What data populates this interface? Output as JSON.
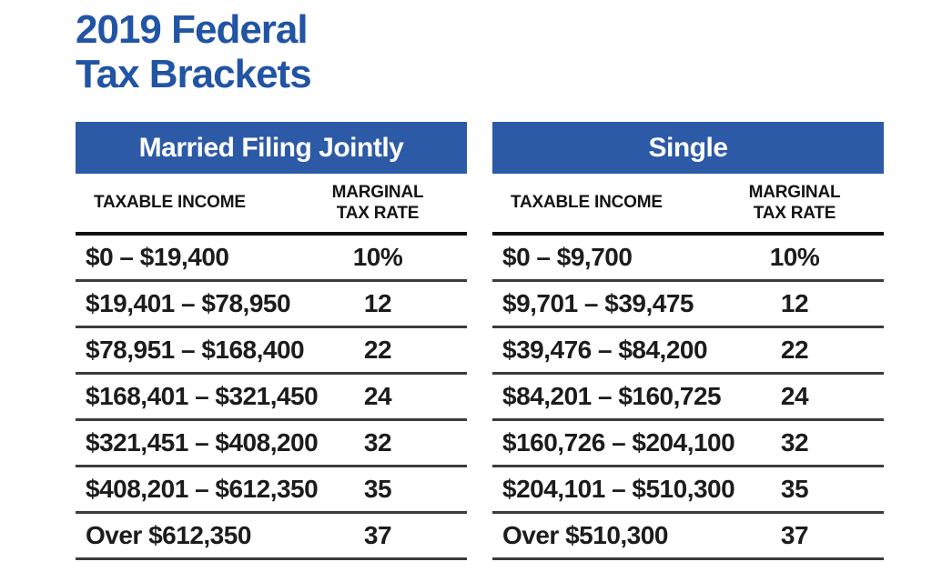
{
  "page_title": {
    "line1": "2019 Federal",
    "line2": "Tax Brackets"
  },
  "column_headers": {
    "income": "TAXABLE INCOME",
    "rate_line1": "MARGINAL",
    "rate_line2": "TAX RATE"
  },
  "colors": {
    "title_blue": "#2154a4",
    "header_bar_blue": "#2c5aa7",
    "header_text": "#141414",
    "header_line": "#121212",
    "separator": "#3c3c3c",
    "row_text": "#1c1c1c"
  },
  "chart_data": [
    {
      "type": "table",
      "title": "Married Filing Jointly",
      "columns": [
        "TAXABLE INCOME",
        "MARGINAL TAX RATE"
      ],
      "rows": [
        [
          "$0 – $19,400",
          "10%"
        ],
        [
          "$19,401 – $78,950",
          "12"
        ],
        [
          "$78,951 – $168,400",
          "22"
        ],
        [
          "$168,401 – $321,450",
          "24"
        ],
        [
          "$321,451 – $408,200",
          "32"
        ],
        [
          "$408,201 – $612,350",
          "35"
        ],
        [
          "Over $612,350",
          "37"
        ]
      ]
    },
    {
      "type": "table",
      "title": "Single",
      "columns": [
        "TAXABLE INCOME",
        "MARGINAL TAX RATE"
      ],
      "rows": [
        [
          "$0 – $9,700",
          "10%"
        ],
        [
          "$9,701 – $39,475",
          "12"
        ],
        [
          "$39,476 – $84,200",
          "22"
        ],
        [
          "$84,201 – $160,725",
          "24"
        ],
        [
          "$160,726 – $204,100",
          "32"
        ],
        [
          "$204,101 – $510,300",
          "35"
        ],
        [
          "Over $510,300",
          "37"
        ]
      ]
    }
  ]
}
